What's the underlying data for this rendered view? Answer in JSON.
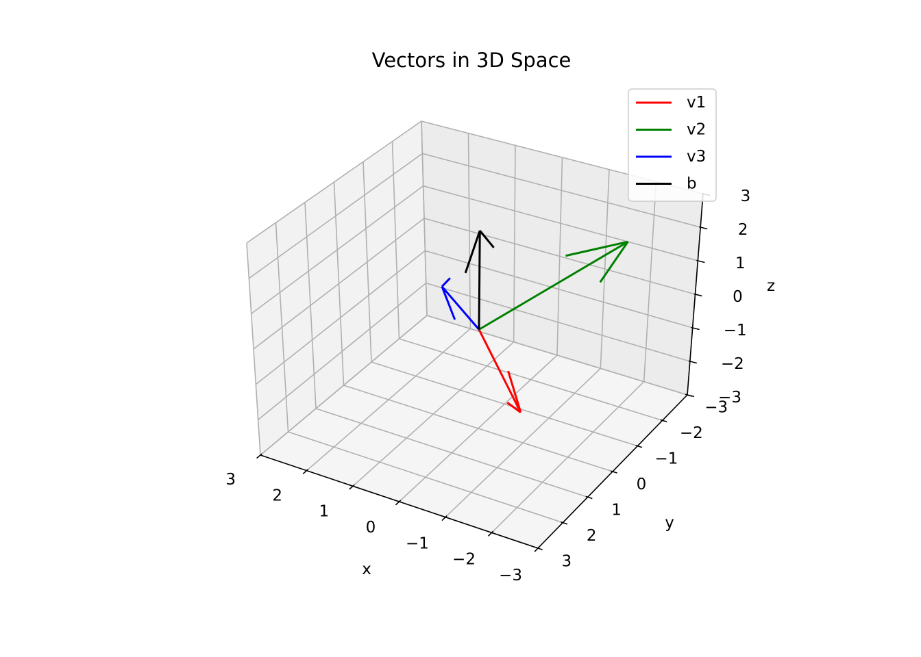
{
  "chart_data": {
    "type": "line",
    "subtype": "3d-quiver",
    "title": "Vectors in 3D Space",
    "xlabel": "x",
    "ylabel": "y",
    "zlabel": "z",
    "xlim": [
      -3,
      3
    ],
    "ylim": [
      -3,
      3
    ],
    "zlim": [
      -3,
      3
    ],
    "x_ticks": [
      "−3",
      "−2",
      "−1",
      "0",
      "1",
      "2",
      "3"
    ],
    "y_ticks": [
      "−3",
      "−2",
      "−1",
      "0",
      "1",
      "2",
      "3"
    ],
    "z_ticks": [
      "−3",
      "−2",
      "−1",
      "0",
      "1",
      "2",
      "3"
    ],
    "grid": true,
    "legend": "top-right",
    "series": [
      {
        "name": "v1",
        "color": "#ff0000",
        "origin": [
          0,
          0,
          0
        ],
        "vector": [
          -2,
          2,
          0
        ]
      },
      {
        "name": "v2",
        "color": "#008000",
        "origin": [
          0,
          0,
          0
        ],
        "vector": [
          -2,
          -2,
          2
        ]
      },
      {
        "name": "v3",
        "color": "#0000ff",
        "origin": [
          0,
          0,
          0
        ],
        "vector": [
          2,
          -2,
          -1
        ]
      },
      {
        "name": "b",
        "color": "#000000",
        "origin": [
          0,
          0,
          0
        ],
        "vector": [
          0,
          0,
          3
        ]
      }
    ]
  }
}
